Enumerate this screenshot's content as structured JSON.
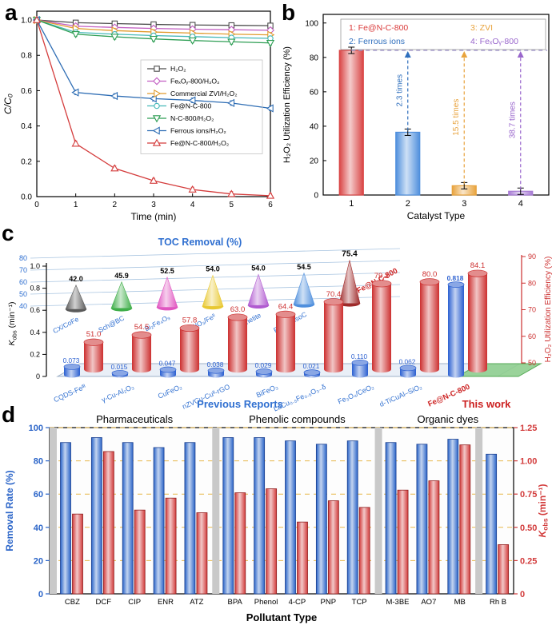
{
  "figure": {
    "panel_labels": [
      "a",
      "b",
      "c",
      "d"
    ]
  },
  "chart_data": [
    {
      "panel": "a",
      "type": "line",
      "xlabel": "Time (min)",
      "ylabel": "C/C₀",
      "x": [
        0,
        1,
        2,
        3,
        4,
        5,
        6
      ],
      "xlim": [
        0,
        6
      ],
      "ylim": [
        0,
        1.05
      ],
      "yticks": [
        0,
        0.2,
        0.4,
        0.6,
        0.8,
        1.0
      ],
      "series": [
        {
          "name": "H₂O₂",
          "color": "#4d4d4d",
          "marker": "square",
          "values": [
            1.0,
            0.985,
            0.98,
            0.975,
            0.972,
            0.97,
            0.968
          ]
        },
        {
          "name": "FeₓOᵧ-800/H₂O₂",
          "color": "#c25ec2",
          "marker": "diamond",
          "values": [
            1.0,
            0.965,
            0.958,
            0.952,
            0.948,
            0.945,
            0.942
          ]
        },
        {
          "name": "Commercial ZVI/H₂O₂",
          "color": "#e09b2d",
          "marker": "triangle-right",
          "values": [
            1.0,
            0.952,
            0.94,
            0.932,
            0.926,
            0.92,
            0.916
          ]
        },
        {
          "name": "Fe@N-C-800",
          "color": "#45b8b8",
          "marker": "circle",
          "values": [
            1.0,
            0.93,
            0.92,
            0.912,
            0.906,
            0.9,
            0.896
          ]
        },
        {
          "name": "N-C-800/H₂O₂",
          "color": "#2e9e54",
          "marker": "triangle-down",
          "values": [
            1.0,
            0.92,
            0.905,
            0.893,
            0.884,
            0.877,
            0.87
          ]
        },
        {
          "name": "Ferrous ions/H₂O₂",
          "color": "#2e6db4",
          "marker": "triangle-left",
          "values": [
            1.0,
            0.59,
            0.57,
            0.555,
            0.545,
            0.53,
            0.5
          ]
        },
        {
          "name": "Fe@N-C-800/H₂O₂",
          "color": "#d43c3c",
          "marker": "triangle-up",
          "values": [
            1.0,
            0.3,
            0.16,
            0.09,
            0.04,
            0.015,
            0.005
          ]
        }
      ]
    },
    {
      "panel": "b",
      "type": "bar",
      "xlabel": "Catalyst Type",
      "ylabel": "H₂O₂ Utilization Efficiency (%)",
      "categories": [
        "1",
        "2",
        "3",
        "4"
      ],
      "values": [
        84.1,
        36.5,
        5.4,
        2.2
      ],
      "colors": [
        "#d94545",
        "#4f8fdd",
        "#e8a33d",
        "#a77bd4"
      ],
      "ylim": [
        0,
        105
      ],
      "yticks": [
        0,
        20,
        40,
        60,
        80,
        100
      ],
      "legend": [
        {
          "label": "1: Fe@N-C-800",
          "color": "#d93a3a"
        },
        {
          "label": "2: Ferrous ions",
          "color": "#2f6fbd"
        },
        {
          "label": "3: ZVI",
          "color": "#e8a33d"
        },
        {
          "label": "4: FeₓOᵧ-800",
          "color": "#9966cc"
        }
      ],
      "reference_line": 84.1,
      "fold_annotations": [
        {
          "bar_index": 1,
          "text": "2.3 times",
          "color": "#2f6fbd"
        },
        {
          "bar_index": 2,
          "text": "15.5 times",
          "color": "#e8a33d"
        },
        {
          "bar_index": 3,
          "text": "38.7 times",
          "color": "#9966cc"
        }
      ]
    },
    {
      "panel": "c",
      "type": "3d-composite",
      "toc": {
        "title": "TOC Removal (%)",
        "axis_ticks": [
          80,
          70,
          60,
          50,
          40
        ],
        "categories": [
          "CX/CoFe",
          "Sch@BC",
          "Bi₂Fe₄O₉",
          "WO₃/Feᴵᴵ",
          "Magnetite",
          "Fe@MesoC",
          "Fe@N-C-800"
        ],
        "values": [
          42.0,
          45.9,
          52.5,
          54.0,
          54.0,
          54.5,
          75.4
        ],
        "colors": [
          "#5a5a5a",
          "#3fae49",
          "#e055c0",
          "#e8c832",
          "#b05ad0",
          "#4f8fdd",
          "#9e2a2a"
        ]
      },
      "bars": {
        "categories": [
          "CQDS-Feᴵᴵᴵ",
          "γ-Cu-Al₂O₃",
          "CuFeO₂",
          "nZVCu-Cuᴵᴵ-rGO",
          "BiFeO₃",
          "LaCu₀.₅Fe₀.₅O₃₋δ",
          "Fe₃O₄/CeO₂",
          "d-TiCuAl–SiO₂",
          "Fe@N-C-800"
        ],
        "kobs": [
          0.073,
          0.015,
          0.047,
          0.038,
          0.029,
          0.021,
          0.11,
          0.062,
          0.818
        ],
        "h2o2": [
          51.0,
          54.5,
          57.8,
          63.0,
          64.4,
          70.4,
          79.2,
          80.0,
          84.1
        ]
      },
      "ylabel_left": "Kobs (min⁻¹)",
      "yticks_left": [
        0,
        0.2,
        0.4,
        0.6,
        0.8,
        1.0
      ],
      "ylabel_right": "H₂O₂ Utilization Efficiency (%)",
      "yticks_right": [
        50,
        60,
        70,
        80,
        90
      ],
      "group_label_left": "Previous Reports",
      "group_label_right": "This work",
      "colors": {
        "kobs_bar": "#2a5fd0",
        "h2o2_bar": "#cc2f2f",
        "platform": "#8fce8f"
      }
    },
    {
      "panel": "d",
      "type": "bar-dual",
      "xlabel": "Pollutant Type",
      "ylabel_left": "Removal Rate (%)",
      "ylabel_right": "Kobs (min⁻¹)",
      "yticks_left": [
        0,
        20,
        40,
        60,
        80,
        100
      ],
      "yticks_right": [
        "0",
        "0.25",
        "0.50",
        "0.75",
        "1.00",
        "1.25"
      ],
      "ylim_left": [
        0,
        100
      ],
      "ylim_right": [
        0,
        1.25
      ],
      "groups": [
        {
          "label": "Pharmaceuticals",
          "start": 0,
          "end": 5
        },
        {
          "label": "Phenolic compounds",
          "start": 5,
          "end": 10
        },
        {
          "label": "Organic dyes",
          "start": 10,
          "end": 14
        }
      ],
      "categories": [
        "CBZ",
        "DCF",
        "CIP",
        "ENR",
        "ATZ",
        "BPA",
        "Phenol",
        "4-CP",
        "PNP",
        "TCP",
        "M-3BE",
        "AO7",
        "MB",
        "Rh B"
      ],
      "removal_rate": [
        91,
        94,
        91,
        88,
        91,
        94,
        94,
        92,
        90,
        92,
        91,
        90,
        93,
        84
      ],
      "kobs": [
        0.6,
        1.07,
        0.63,
        0.72,
        0.61,
        0.76,
        0.79,
        0.54,
        0.7,
        0.65,
        0.78,
        0.85,
        1.12,
        0.37
      ],
      "colors": {
        "removal": "#2a64c8",
        "kobs": "#d23b3b"
      }
    }
  ]
}
